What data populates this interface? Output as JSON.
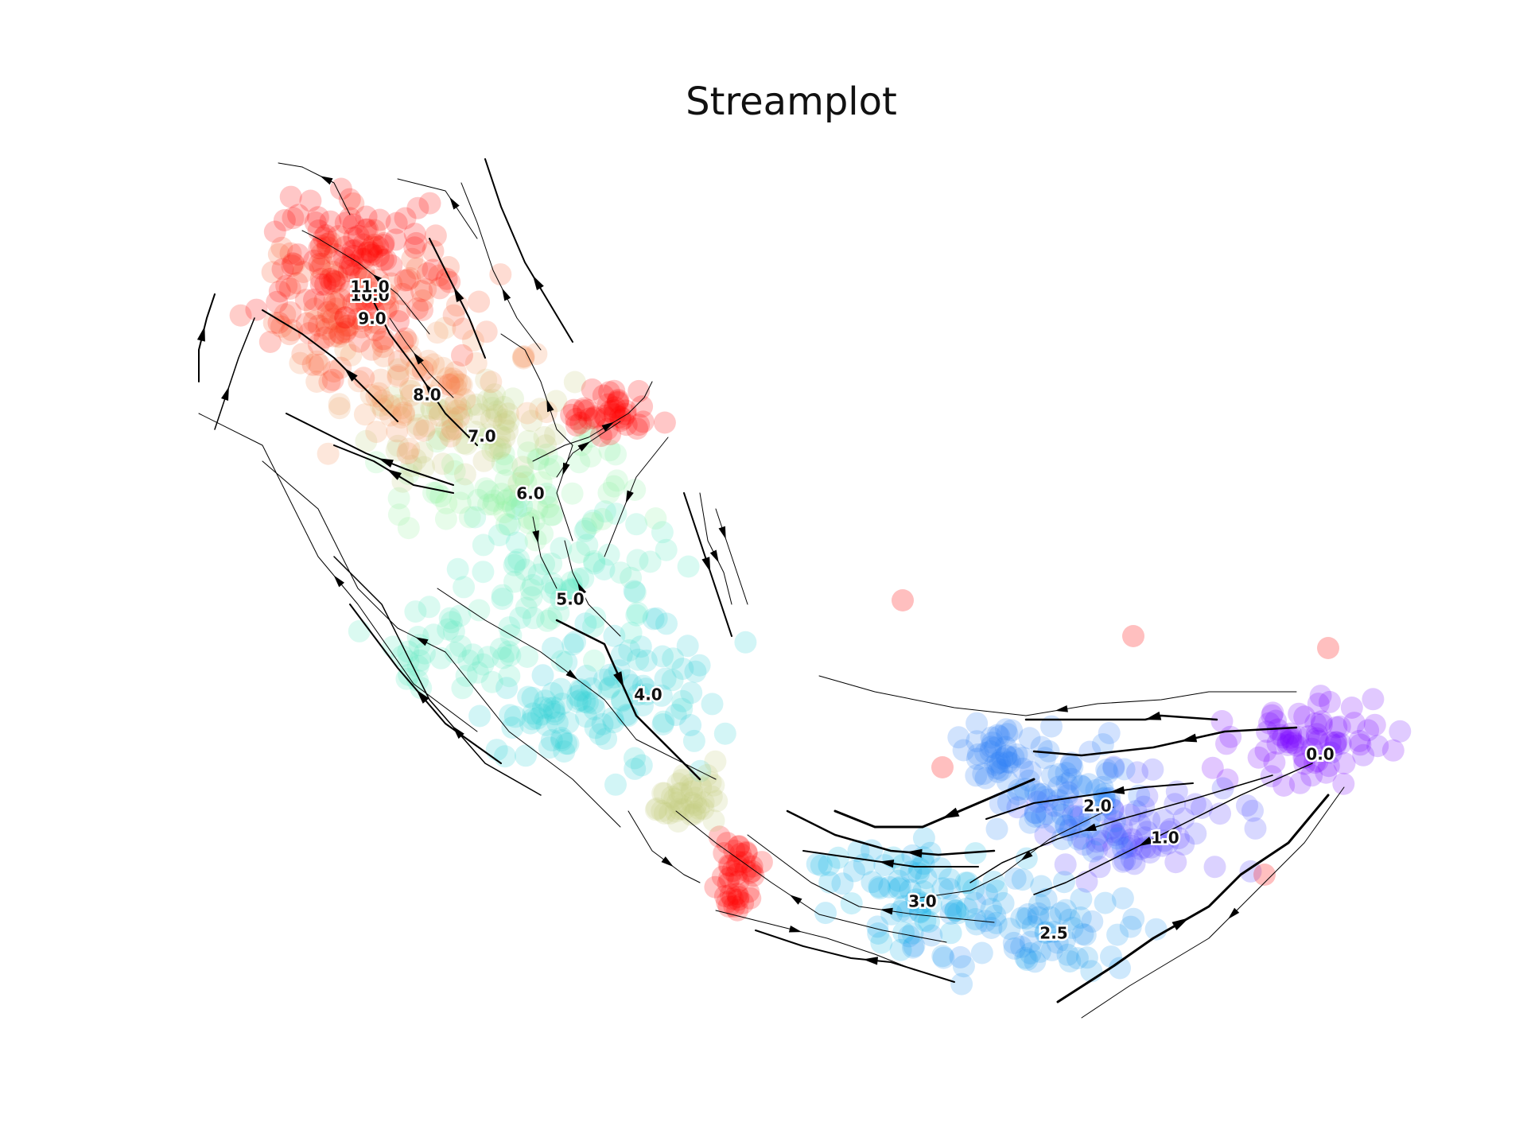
{
  "chart_data": {
    "type": "scatter",
    "title": "Streamplot",
    "xlabel": "",
    "ylabel": "",
    "axes_visible": false,
    "grid": false,
    "colormap": [
      "#7a00ff",
      "#3a6cff",
      "#12b7e6",
      "#4ee6c8",
      "#9ff59a",
      "#f4a064",
      "#ff3a1a",
      "#ff0000"
    ],
    "clusters": [
      {
        "label": "0.0",
        "value": 0.0
      },
      {
        "label": "1.0",
        "value": 1.0
      },
      {
        "label": "2.0",
        "value": 2.0
      },
      {
        "label": "2.5",
        "value": 2.5
      },
      {
        "label": "3.0",
        "value": 3.0
      },
      {
        "label": "4.0",
        "value": 4.0
      },
      {
        "label": "5.0",
        "value": 5.0
      },
      {
        "label": "6.0",
        "value": 6.0
      },
      {
        "label": "7.0",
        "value": 7.0
      },
      {
        "label": "8.0",
        "value": 8.0
      },
      {
        "label": "9.0",
        "value": 9.0
      },
      {
        "label": "10.0",
        "value": 10.0
      },
      {
        "label": "11.0",
        "value": 11.0
      }
    ],
    "stream_direction": "from cluster 0.0 (right) toward cluster 11.0 (upper-left)"
  }
}
